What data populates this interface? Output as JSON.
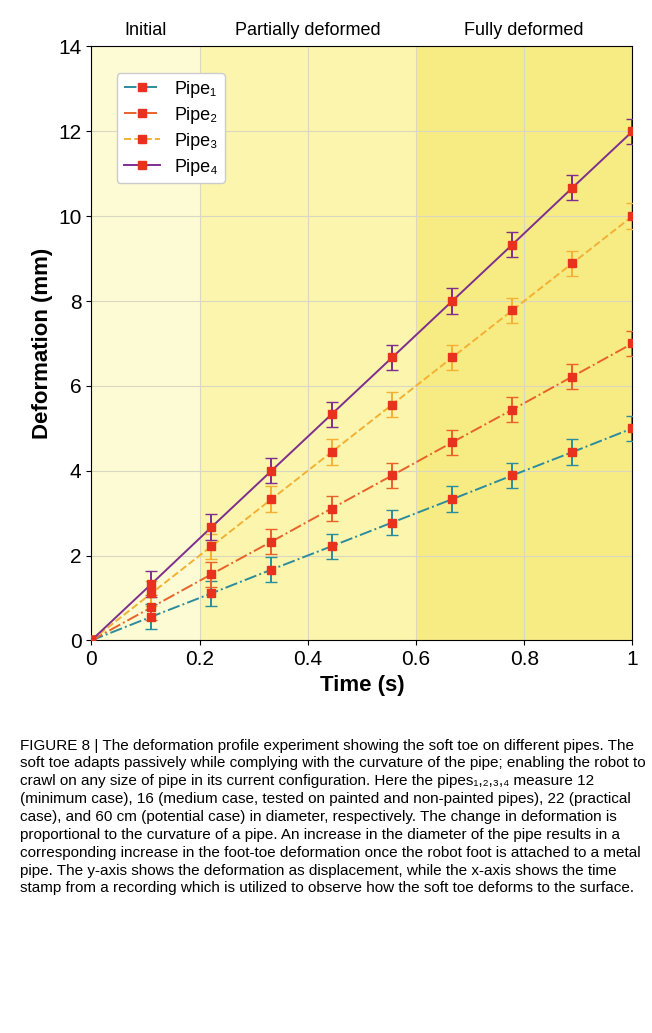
{
  "chart_data": {
    "type": "line",
    "x_label": "Time (s)",
    "y_label": "Deformation (mm)",
    "xlim": [
      0,
      1
    ],
    "xticks": [
      0,
      0.2,
      0.4,
      0.6,
      0.8,
      1
    ],
    "ylim": [
      0,
      14
    ],
    "yticks": [
      0,
      2,
      4,
      6,
      8,
      10,
      12,
      14
    ],
    "grid": true,
    "legend": "upper left",
    "regions": [
      {
        "label": "Initial",
        "start": 0,
        "end": 0.2,
        "color": "#fdfbd3"
      },
      {
        "label": "Partially deformed",
        "start": 0.2,
        "end": 0.6,
        "color": "#fbf5ad"
      },
      {
        "label": "Fully deformed",
        "start": 0.6,
        "end": 1,
        "color": "#f7ec84"
      }
    ],
    "x": [
      0,
      0.111,
      0.222,
      0.333,
      0.444,
      0.556,
      0.667,
      0.778,
      0.889,
      1
    ],
    "series": [
      {
        "name": "Pipe₁",
        "color": "#2b8c9e",
        "line_style": "dashdot",
        "marker": "s",
        "values": [
          0,
          0.56,
          1.11,
          1.67,
          2.22,
          2.78,
          3.33,
          3.89,
          4.44,
          5.0
        ],
        "errors": [
          0.1,
          0.3,
          0.3,
          0.3,
          0.3,
          0.3,
          0.3,
          0.3,
          0.3,
          0.3
        ]
      },
      {
        "name": "Pipe₂",
        "color": "#e8622a",
        "line_style": "dashdot",
        "marker": "s",
        "values": [
          0,
          0.78,
          1.56,
          2.33,
          3.11,
          3.89,
          4.67,
          5.44,
          6.22,
          7.0
        ],
        "errors": [
          0.1,
          0.3,
          0.3,
          0.3,
          0.3,
          0.3,
          0.3,
          0.3,
          0.3,
          0.3
        ]
      },
      {
        "name": "Pipe₃",
        "color": "#f2b134",
        "line_style": "dashed",
        "marker": "s",
        "values": [
          0,
          1.11,
          2.22,
          3.33,
          4.44,
          5.56,
          6.67,
          7.78,
          8.89,
          10.0
        ],
        "errors": [
          0.1,
          0.3,
          0.3,
          0.3,
          0.3,
          0.3,
          0.3,
          0.3,
          0.3,
          0.3
        ]
      },
      {
        "name": "Pipe₄",
        "color": "#7e2f8e",
        "line_style": "solid",
        "marker": "s",
        "values": [
          0,
          1.33,
          2.67,
          4.0,
          5.33,
          6.67,
          8.0,
          9.33,
          10.67,
          12.0
        ],
        "errors": [
          0.1,
          0.3,
          0.3,
          0.3,
          0.3,
          0.3,
          0.3,
          0.3,
          0.3,
          0.3
        ]
      }
    ],
    "caption": "FIGURE 8 | The deformation profile experiment showing the soft toe on different pipes. The soft toe adapts passively while complying with the curvature of the pipe; enabling the robot to crawl on any size of pipe in its current configuration. Here the pipes₁,₂,₃,₄ measure 12 (minimum case), 16 (medium case, tested on painted and non-painted pipes), 22 (practical case), and 60 cm (potential case) in diameter, respectively. The change in deformation is proportional to the curvature of a pipe. An increase in the diameter of the pipe results in a corresponding increase in the foot-toe deformation once the robot foot is attached to a metal pipe. The y-axis shows the deformation as displacement, while the x-axis shows the time stamp from a recording which is utilized to observe how the soft toe deforms to the surface."
  }
}
